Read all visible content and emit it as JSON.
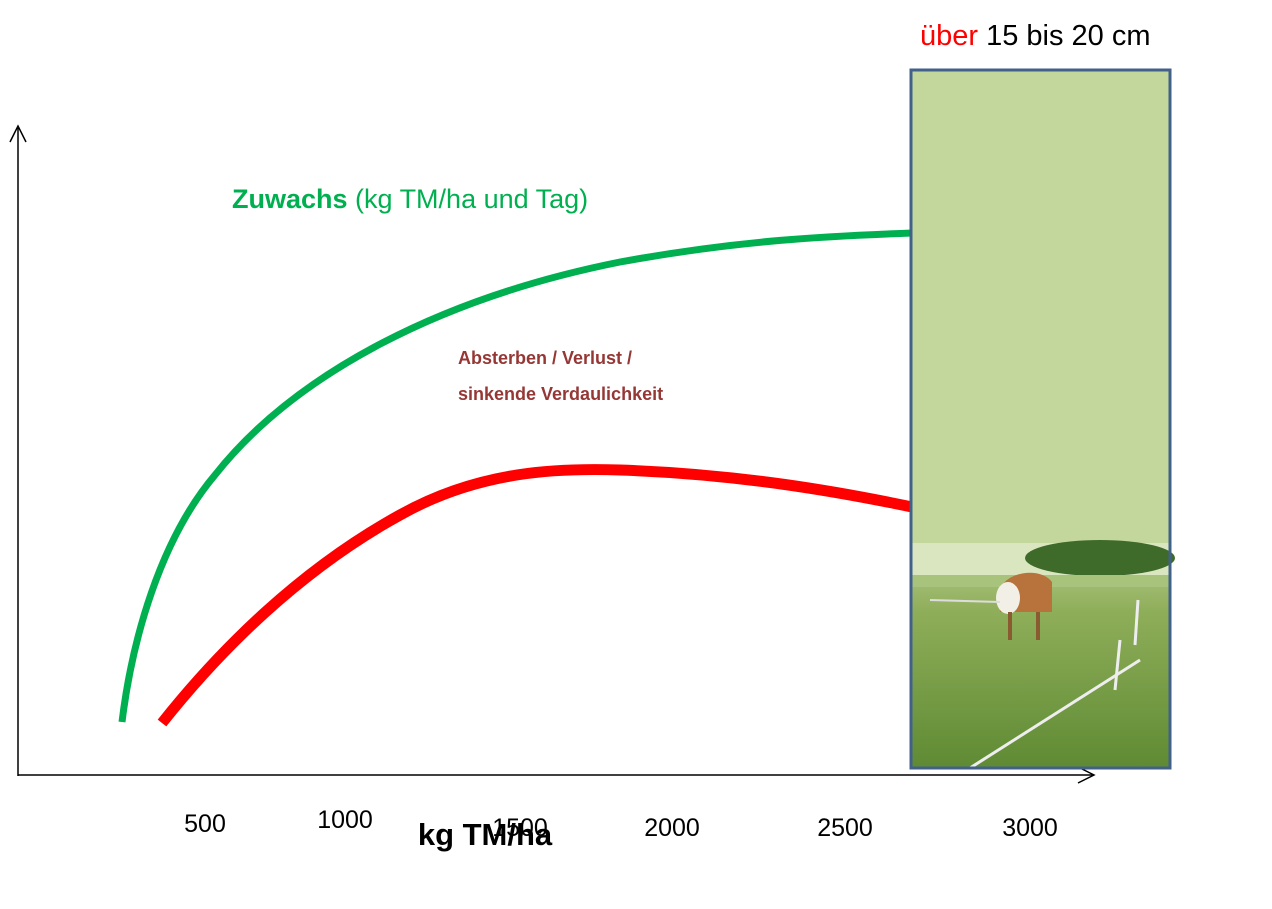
{
  "header": {
    "highlight": "über",
    "rest": "15 bis 20 cm"
  },
  "growth_label": {
    "bold": "Zuwachs",
    "rest": "(kg TM/ha und Tag)"
  },
  "loss_label": [
    "Absterben / Verlust /",
    "sinkende Verdaulichkeit"
  ],
  "x_axis": {
    "ticks": [
      "500",
      "1000",
      "1500",
      "2000",
      "2500",
      "3000"
    ],
    "label": "kg TM/ha"
  }
}
